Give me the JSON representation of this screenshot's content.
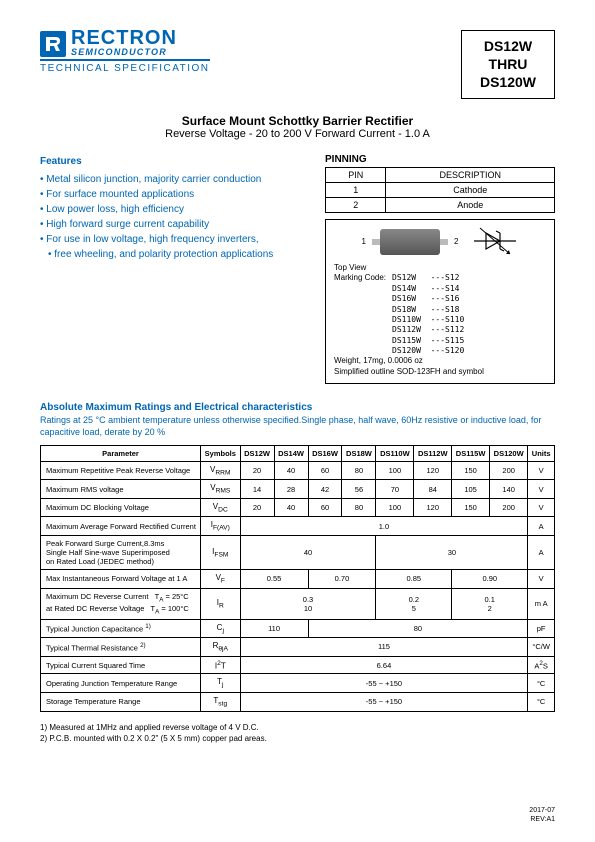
{
  "logo": {
    "name": "RECTRON",
    "sub": "SEMICONDUCTOR",
    "spec": "TECHNICAL SPECIFICATION"
  },
  "part_box": {
    "l1": "DS12W",
    "l2": "THRU",
    "l3": "DS120W"
  },
  "title": {
    "main": "Surface Mount Schottky Barrier Rectifier",
    "sub": "Reverse Voltage - 20 to 200 V Forward Current - 1.0 A"
  },
  "features": {
    "h": "Features",
    "items": [
      "Metal silicon junction, majority carrier conduction",
      "For surface mounted applications",
      "Low power loss, high efficiency",
      "High forward surge current capability",
      "For use in low voltage, high frequency inverters,",
      "free wheeling, and polarity protection applications"
    ]
  },
  "pinning": {
    "h": "PINNING",
    "cols": [
      "PIN",
      "DESCRIPTION"
    ],
    "rows": [
      [
        "1",
        "Cathode"
      ],
      [
        "2",
        "Anode"
      ]
    ]
  },
  "pkg": {
    "top": "Top View",
    "pin1": "1",
    "pin2": "2",
    "marking_h": "Marking Code:",
    "marking": "DS12W   ---S12\nDS14W   ---S14\nDS16W   ---S16\nDS18W   ---S18\nDS110W  ---S110\nDS112W  ---S112\nDS115W  ---S115\nDS120W  ---S120",
    "weight": "Weight,  17mg,  0.0006 oz",
    "outline": "Simplified outline SOD-123FH and symbol"
  },
  "abs": {
    "h": "Absolute Maximum Ratings and Electrical characteristics",
    "note": "Ratings at 25 °C ambient temperature unless otherwise specified.Single phase, half wave, 60Hz resistive or inductive load, for capacitive load, derate by 20 %"
  },
  "table": {
    "headers": [
      "Parameter",
      "Symbols",
      "DS12W",
      "DS14W",
      "DS16W",
      "DS18W",
      "DS110W",
      "DS112W",
      "DS115W",
      "DS120W",
      "Units"
    ],
    "rows": [
      {
        "param": "Maximum Repetitive Peak Reverse Voltage",
        "sym": "V<sub>RRM</sub>",
        "cells": [
          "20",
          "40",
          "60",
          "80",
          "100",
          "120",
          "150",
          "200"
        ],
        "unit": "V"
      },
      {
        "param": "Maximum RMS voltage",
        "sym": "V<sub>RMS</sub>",
        "cells": [
          "14",
          "28",
          "42",
          "56",
          "70",
          "84",
          "105",
          "140"
        ],
        "unit": "V"
      },
      {
        "param": "Maximum DC Blocking Voltage",
        "sym": "V<sub>DC</sub>",
        "cells": [
          "20",
          "40",
          "60",
          "80",
          "100",
          "120",
          "150",
          "200"
        ],
        "unit": "V"
      },
      {
        "param": "Maximum Average Forward Rectified Current",
        "sym": "I<sub>F(AV)</sub>",
        "span": "1.0",
        "unit": "A"
      },
      {
        "param": "Peak Forward Surge Current,8.3ms<br>Single Half Sine-wave Superimposed<br>on Rated Load (JEDEC method)",
        "sym": "I<sub>FSM</sub>",
        "spans": [
          {
            "c": 4,
            "v": "40"
          },
          {
            "c": 4,
            "v": "30"
          }
        ],
        "unit": "A"
      },
      {
        "param": "Max Instantaneous Forward Voltage at 1 A",
        "sym": "V<sub>F</sub>",
        "spans": [
          {
            "c": 2,
            "v": "0.55"
          },
          {
            "c": 2,
            "v": "0.70"
          },
          {
            "c": 2,
            "v": "0.85"
          },
          {
            "c": 2,
            "v": "0.90"
          }
        ],
        "unit": "V"
      },
      {
        "param": "Maximum DC Reverse Current &nbsp; T<sub>A</sub> = 25°C<br>at Rated DC Reverse Voltage &nbsp; T<sub>A</sub> = 100°C",
        "sym": "I<sub>R</sub>",
        "spans": [
          {
            "c": 4,
            "v": "0.3<br>10"
          },
          {
            "c": 2,
            "v": "0.2<br>5"
          },
          {
            "c": 2,
            "v": "0.1<br>2"
          }
        ],
        "unit": "m A"
      },
      {
        "param": "Typical Junction Capacitance <sup>1)</sup>",
        "sym": "C<sub>j</sub>",
        "spans": [
          {
            "c": 2,
            "v": "110"
          },
          {
            "c": 6,
            "v": "80"
          }
        ],
        "unit": "pF"
      },
      {
        "param": "Typical Thermal Resistance <sup>2)</sup>",
        "sym": "R<sub>θjA</sub>",
        "span": "115",
        "unit": "°C/W"
      },
      {
        "param": "Typical Current Squared Time",
        "sym": "I<sup>2</sup>T",
        "span": "6.64",
        "unit": "A<sup>2</sup>S"
      },
      {
        "param": "Operating Junction Temperature Range",
        "sym": "T<sub>j</sub>",
        "span": "-55 ~ +150",
        "unit": "°C"
      },
      {
        "param": "Storage Temperature Range",
        "sym": "T<sub>stg</sub>",
        "span": "-55 ~ +150",
        "unit": "°C"
      }
    ]
  },
  "footnotes": {
    "n1": "1)  Measured at 1MHz and applied reverse voltage of 4 V D.C.",
    "n2": "2)  P.C.B. mounted with 0.2 X 0.2\" (5 X 5 mm) copper pad areas."
  },
  "footer": {
    "date": "2017-07",
    "rev": "REV:A1"
  }
}
